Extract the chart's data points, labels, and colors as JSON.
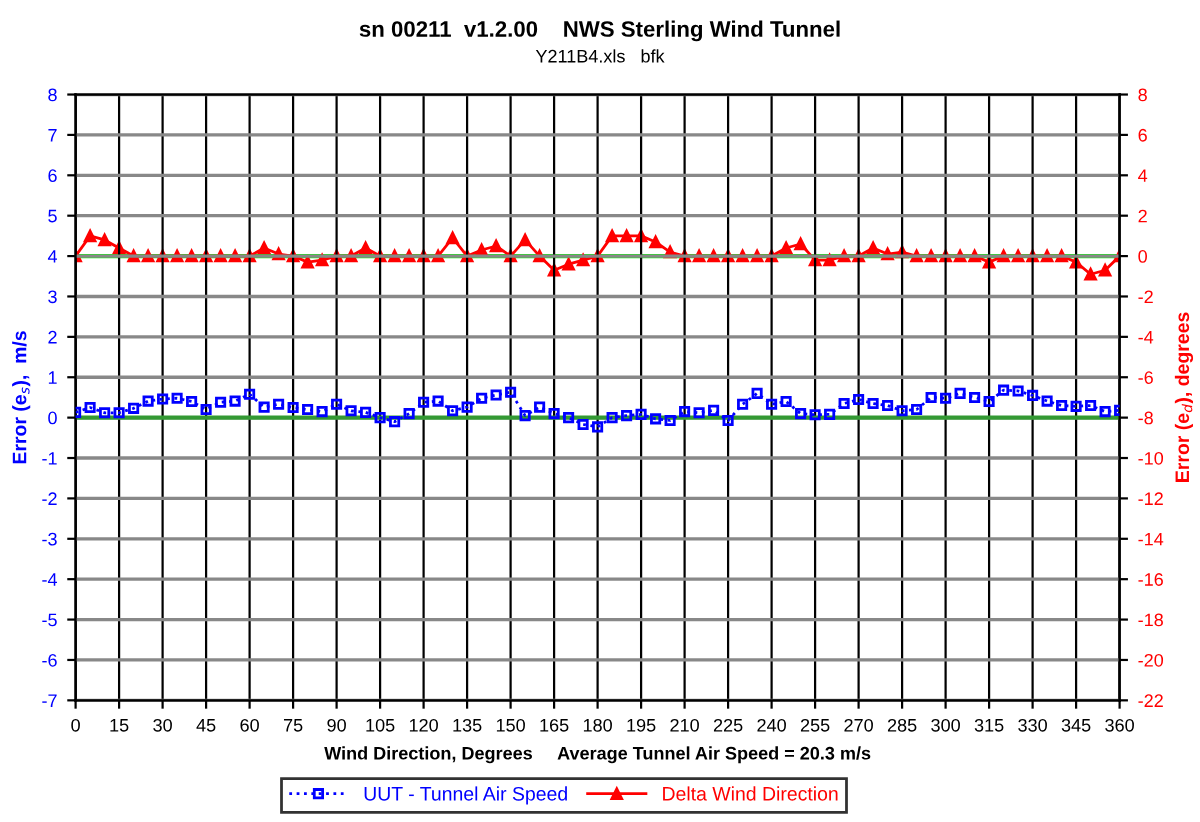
{
  "chart_data": {
    "type": "line",
    "title": "sn 00211  v1.2.00    NWS Sterling Wind Tunnel",
    "subtitle": "Y211B4.xls   bfk",
    "xlabel": "Wind Direction, Degrees     Average Tunnel Air Speed = 20.3 m/s",
    "ylabel": "Error (e$_{s}$),  m/s",
    "y2label": "Error (e$_{d}$), degrees",
    "x": [
      0,
      5,
      10,
      15,
      20,
      25,
      30,
      35,
      40,
      45,
      50,
      55,
      60,
      65,
      70,
      75,
      80,
      85,
      90,
      95,
      100,
      105,
      110,
      115,
      120,
      125,
      130,
      135,
      140,
      145,
      150,
      155,
      160,
      165,
      170,
      175,
      180,
      185,
      190,
      195,
      200,
      205,
      210,
      215,
      220,
      225,
      230,
      235,
      240,
      245,
      250,
      255,
      260,
      265,
      270,
      275,
      280,
      285,
      290,
      295,
      300,
      305,
      310,
      315,
      320,
      325,
      330,
      335,
      340,
      345,
      350,
      355,
      360
    ],
    "series": [
      {
        "name": "UUT - Tunnel Air Speed",
        "color": "#0000ff",
        "marker": "square",
        "line_style": "dotted",
        "values": [
          0.13,
          0.25,
          0.12,
          0.12,
          0.23,
          0.41,
          0.46,
          0.48,
          0.4,
          0.2,
          0.38,
          0.41,
          0.58,
          0.26,
          0.33,
          0.25,
          0.2,
          0.15,
          0.33,
          0.17,
          0.13,
          0,
          -0.1,
          0.1,
          0.38,
          0.41,
          0.17,
          0.26,
          0.48,
          0.56,
          0.63,
          0.05,
          0.26,
          0.1,
          0,
          -0.17,
          -0.23,
          0,
          0.05,
          0.08,
          -0.03,
          -0.07,
          0.15,
          0.12,
          0.18,
          -0.07,
          0.33,
          0.6,
          0.33,
          0.4,
          0.1,
          0.07,
          0.08,
          0.35,
          0.45,
          0.35,
          0.3,
          0.17,
          0.2,
          0.5,
          0.48,
          0.6,
          0.5,
          0.4,
          0.68,
          0.66,
          0.55,
          0.41,
          0.3,
          0.28,
          0.3,
          0.15,
          0.18
        ]
      },
      {
        "name": "Delta Wind Direction",
        "color": "#ff0000",
        "marker": "triangle",
        "line_style": "solid",
        "axis": "y2",
        "values": [
          0,
          1.0,
          0.8,
          0.4,
          0,
          0,
          0,
          0,
          0,
          0,
          0,
          0,
          0,
          0.4,
          0.1,
          0,
          -0.3,
          -0.2,
          0,
          0,
          0.4,
          0,
          0,
          0,
          0,
          0,
          0.9,
          0,
          0.3,
          0.5,
          0,
          0.8,
          0,
          -0.7,
          -0.4,
          -0.2,
          0,
          1.0,
          1.0,
          1.0,
          0.7,
          0.2,
          0,
          0,
          0,
          0,
          0,
          0,
          0,
          0.4,
          0.6,
          -0.2,
          -0.2,
          0,
          0,
          0.4,
          0.1,
          0.2,
          0,
          0,
          0,
          0,
          0,
          -0.3,
          0,
          0,
          0,
          0,
          0,
          -0.3,
          -0.9,
          -0.7,
          0
        ]
      }
    ],
    "xlim": [
      0,
      360
    ],
    "xticks": [
      0,
      15,
      30,
      45,
      60,
      75,
      90,
      105,
      120,
      135,
      150,
      165,
      180,
      195,
      210,
      225,
      240,
      255,
      270,
      285,
      300,
      315,
      330,
      345,
      360
    ],
    "ylim": [
      -7,
      8
    ],
    "yticks": [
      -7,
      -6,
      -5,
      -4,
      -3,
      -2,
      -1,
      0,
      1,
      2,
      3,
      4,
      5,
      6,
      7,
      8
    ],
    "y2lim": [
      -22,
      8
    ],
    "y2ticks": [
      -22,
      -20,
      -18,
      -16,
      -14,
      -12,
      -10,
      -8,
      -6,
      -4,
      -2,
      0,
      2,
      4,
      6,
      8
    ],
    "ref_lines": [
      {
        "axis": "y",
        "value": 0,
        "color": "#339933"
      },
      {
        "axis": "y2",
        "value": 0,
        "color": "#00ff00"
      }
    ],
    "grid": true,
    "legend": "bottom"
  }
}
